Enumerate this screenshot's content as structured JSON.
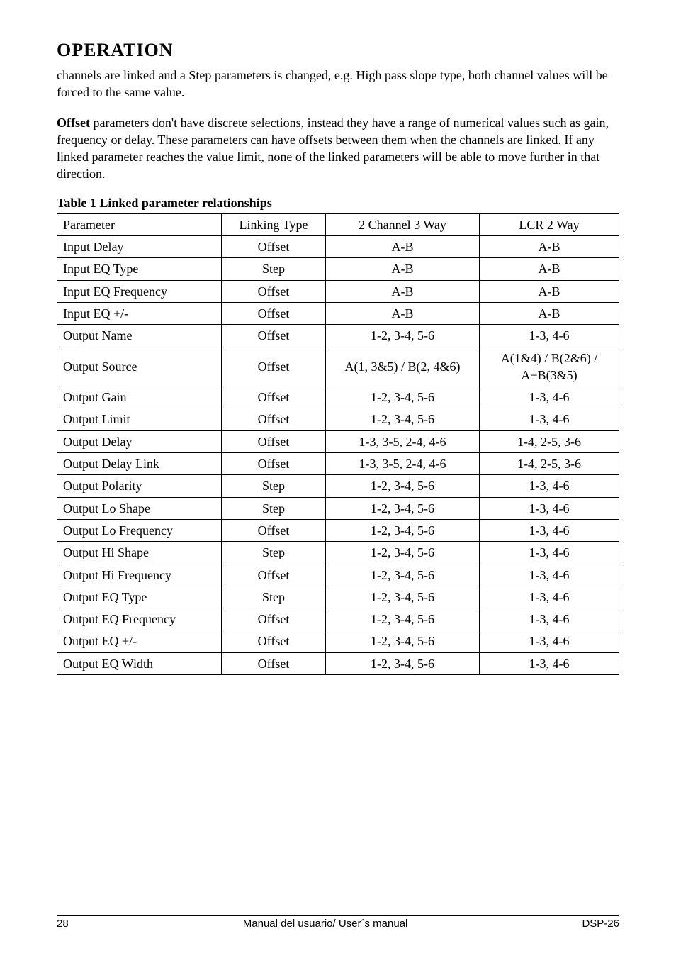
{
  "section_title": "OPERATION",
  "para1": "channels are linked and a Step parameters is changed, e.g. High pass slope type, both channel values will be forced to the same value.",
  "para2_bold": "Offset",
  "para2_rest": " parameters don't have discrete selections, instead they have a range of numerical values such as gain, frequency or delay. These parameters can have offsets between them when the channels are linked. If any linked parameter reaches the value limit, none of the linked parameters will be able to move further in that direction.",
  "table_caption": "Table 1 Linked parameter relationships",
  "table": {
    "headers": {
      "parameter": "Parameter",
      "linking_type": "Linking Type",
      "ch3way": "2 Channel 3 Way",
      "lcr": "LCR 2 Way"
    },
    "rows": [
      {
        "parameter": "Input Delay",
        "linking_type": "Offset",
        "ch3way": "A-B",
        "lcr": "A-B"
      },
      {
        "parameter": "Input EQ Type",
        "linking_type": "Step",
        "ch3way": "A-B",
        "lcr": "A-B"
      },
      {
        "parameter": "Input EQ Frequency",
        "linking_type": "Offset",
        "ch3way": "A-B",
        "lcr": "A-B"
      },
      {
        "parameter": "Input EQ  +/-",
        "linking_type": "Offset",
        "ch3way": "A-B",
        "lcr": "A-B"
      },
      {
        "parameter": "Output Name",
        "linking_type": "Offset",
        "ch3way": "1-2, 3-4, 5-6",
        "lcr": "1-3, 4-6"
      },
      {
        "parameter": "Output Source",
        "linking_type": "Offset",
        "ch3way": "A(1, 3&5) / B(2, 4&6)",
        "lcr": "A(1&4) / B(2&6) / A+B(3&5)"
      },
      {
        "parameter": "Output Gain",
        "linking_type": "Offset",
        "ch3way": "1-2, 3-4, 5-6",
        "lcr": "1-3, 4-6"
      },
      {
        "parameter": "Output Limit",
        "linking_type": "Offset",
        "ch3way": "1-2, 3-4, 5-6",
        "lcr": "1-3, 4-6"
      },
      {
        "parameter": "Output Delay",
        "linking_type": "Offset",
        "ch3way": "1-3,  3-5, 2-4, 4-6",
        "lcr": "1-4, 2-5, 3-6"
      },
      {
        "parameter": "Output Delay Link",
        "linking_type": "Offset",
        "ch3way": "1-3,  3-5, 2-4, 4-6",
        "lcr": "1-4, 2-5, 3-6"
      },
      {
        "parameter": "Output Polarity",
        "linking_type": "Step",
        "ch3way": "1-2, 3-4, 5-6",
        "lcr": "1-3, 4-6"
      },
      {
        "parameter": "Output Lo Shape",
        "linking_type": "Step",
        "ch3way": "1-2, 3-4, 5-6",
        "lcr": "1-3, 4-6"
      },
      {
        "parameter": "Output Lo Frequency",
        "linking_type": "Offset",
        "ch3way": "1-2, 3-4, 5-6",
        "lcr": "1-3, 4-6"
      },
      {
        "parameter": "Output Hi Shape",
        "linking_type": "Step",
        "ch3way": "1-2, 3-4, 5-6",
        "lcr": "1-3, 4-6"
      },
      {
        "parameter": "Output Hi Frequency",
        "linking_type": "Offset",
        "ch3way": "1-2, 3-4, 5-6",
        "lcr": "1-3, 4-6"
      },
      {
        "parameter": "Output EQ Type",
        "linking_type": "Step",
        "ch3way": "1-2, 3-4, 5-6",
        "lcr": "1-3, 4-6"
      },
      {
        "parameter": "Output EQ Frequency",
        "linking_type": "Offset",
        "ch3way": "1-2, 3-4, 5-6",
        "lcr": "1-3, 4-6"
      },
      {
        "parameter": "Output EQ  +/-",
        "linking_type": "Offset",
        "ch3way": "1-2, 3-4, 5-6",
        "lcr": "1-3, 4-6"
      },
      {
        "parameter": "Output EQ Width",
        "linking_type": "Offset",
        "ch3way": "1-2, 3-4, 5-6",
        "lcr": "1-3, 4-6"
      }
    ]
  },
  "footer": {
    "page_number": "28",
    "center": "Manual del usuario/ User´s manual",
    "right": "DSP-26"
  }
}
